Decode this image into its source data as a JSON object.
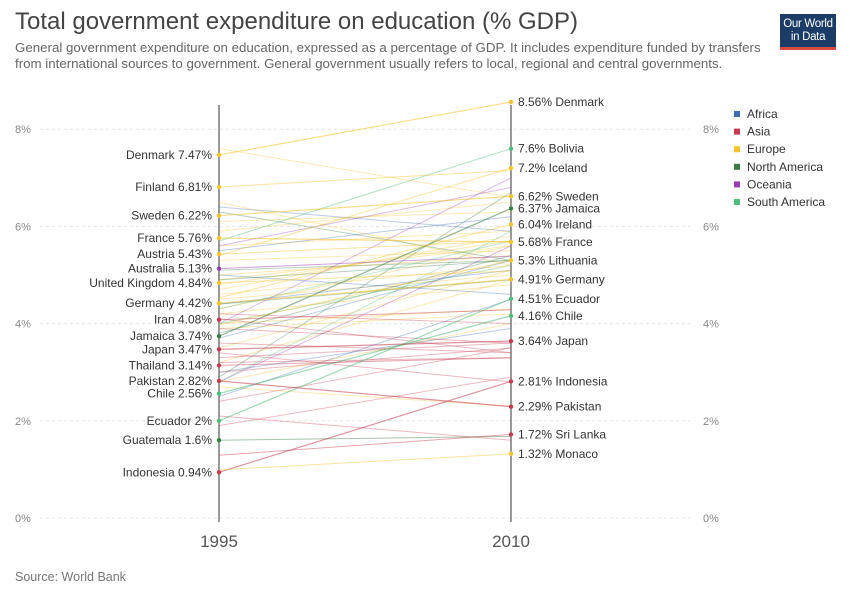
{
  "title": "Total government expenditure on education (% GDP)",
  "subtitle": "General government expenditure on education, expressed as a percentage of GDP. It includes expenditure funded by transfers from international sources to government. General government usually refers to local, regional and central governments.",
  "logo": {
    "line1": "Our World",
    "line2": "in Data"
  },
  "source": "Source: World Bank",
  "chart_data": {
    "type": "line",
    "x": [
      "1995",
      "2010"
    ],
    "ylim": [
      0,
      8.6
    ],
    "yticks": [
      0,
      2,
      4,
      6,
      8
    ],
    "ytick_labels": [
      "0%",
      "2%",
      "4%",
      "6%",
      "8%"
    ],
    "unit": "%",
    "grid": true,
    "legend": {
      "position": "right",
      "entries": [
        {
          "name": "Africa",
          "color": "#3c6db5"
        },
        {
          "name": "Asia",
          "color": "#c43a4e"
        },
        {
          "name": "Europe",
          "color": "#f5c32c"
        },
        {
          "name": "North America",
          "color": "#3a7d44"
        },
        {
          "name": "Oceania",
          "color": "#9a3ab5"
        },
        {
          "name": "South America",
          "color": "#4dbf7a"
        }
      ]
    },
    "series": [
      {
        "name": "Denmark",
        "region": "Europe",
        "values": [
          7.47,
          8.56
        ],
        "label_start": "Denmark 7.47%",
        "label_end": "8.56% Denmark"
      },
      {
        "name": "Bolivia",
        "region": "South America",
        "values": [
          null,
          7.6
        ],
        "label_start": "",
        "label_end": "7.6% Bolivia"
      },
      {
        "name": "Iceland",
        "region": "Europe",
        "values": [
          null,
          7.2
        ],
        "label_start": "",
        "label_end": "7.2% Iceland"
      },
      {
        "name": "Finland",
        "region": "Europe",
        "values": [
          6.81,
          null
        ],
        "label_start": "Finland 6.81%",
        "label_end": ""
      },
      {
        "name": "Sweden",
        "region": "Europe",
        "values": [
          6.22,
          6.62
        ],
        "label_start": "Sweden 6.22%",
        "label_end": "6.62% Sweden"
      },
      {
        "name": "Jamaica",
        "region": "North America",
        "values": [
          3.74,
          6.37
        ],
        "label_start": "Jamaica 3.74%",
        "label_end": "6.37% Jamaica"
      },
      {
        "name": "Ireland",
        "region": "Europe",
        "values": [
          null,
          6.04
        ],
        "label_start": "",
        "label_end": "6.04% Ireland"
      },
      {
        "name": "France",
        "region": "Europe",
        "values": [
          5.76,
          5.68
        ],
        "label_start": "France 5.76%",
        "label_end": "5.68% France"
      },
      {
        "name": "Austria",
        "region": "Europe",
        "values": [
          5.43,
          null
        ],
        "label_start": "Austria 5.43%",
        "label_end": ""
      },
      {
        "name": "Lithuania",
        "region": "Europe",
        "values": [
          null,
          5.3
        ],
        "label_start": "",
        "label_end": "5.3% Lithuania"
      },
      {
        "name": "Australia",
        "region": "Oceania",
        "values": [
          5.13,
          null
        ],
        "label_start": "Australia 5.13%",
        "label_end": ""
      },
      {
        "name": "Germany",
        "region": "Europe",
        "values": [
          4.42,
          4.91
        ],
        "label_start": "Germany 4.42%",
        "label_end": "4.91% Germany"
      },
      {
        "name": "United Kingdom",
        "region": "Europe",
        "values": [
          4.84,
          null
        ],
        "label_start": "United Kingdom 4.84%",
        "label_end": ""
      },
      {
        "name": "Ecuador",
        "region": "South America",
        "values": [
          2.0,
          4.51
        ],
        "label_start": "Ecuador 2%",
        "label_end": "4.51% Ecuador"
      },
      {
        "name": "Chile",
        "region": "South America",
        "values": [
          2.56,
          4.16
        ],
        "label_start": "Chile 2.56%",
        "label_end": "4.16% Chile"
      },
      {
        "name": "Iran",
        "region": "Asia",
        "values": [
          4.08,
          null
        ],
        "label_start": "Iran 4.08%",
        "label_end": ""
      },
      {
        "name": "Japan",
        "region": "Asia",
        "values": [
          3.47,
          3.64
        ],
        "label_start": "Japan 3.47%",
        "label_end": "3.64% Japan"
      },
      {
        "name": "Thailand",
        "region": "Asia",
        "values": [
          3.14,
          null
        ],
        "label_start": "Thailand 3.14%",
        "label_end": ""
      },
      {
        "name": "Pakistan",
        "region": "Asia",
        "values": [
          2.82,
          2.29
        ],
        "label_start": "Pakistan 2.82%",
        "label_end": "2.29% Pakistan"
      },
      {
        "name": "Indonesia",
        "region": "Asia",
        "values": [
          0.94,
          2.81
        ],
        "label_start": "Indonesia 0.94%",
        "label_end": "2.81% Indonesia"
      },
      {
        "name": "Guatemala",
        "region": "North America",
        "values": [
          1.6,
          null
        ],
        "label_start": "Guatemala 1.6%",
        "label_end": ""
      },
      {
        "name": "Sri Lanka",
        "region": "Asia",
        "values": [
          null,
          1.72
        ],
        "label_start": "",
        "label_end": "1.72% Sri Lanka"
      },
      {
        "name": "Monaco",
        "region": "Europe",
        "values": [
          null,
          1.32
        ],
        "label_start": "",
        "label_end": "1.32% Monaco"
      }
    ],
    "background_series": [
      {
        "region": "Europe",
        "values": [
          5.6,
          5.9
        ]
      },
      {
        "region": "Europe",
        "values": [
          5.0,
          5.4
        ]
      },
      {
        "region": "Europe",
        "values": [
          4.9,
          5.6
        ]
      },
      {
        "region": "Europe",
        "values": [
          4.6,
          5.2
        ]
      },
      {
        "region": "Europe",
        "values": [
          4.5,
          5.0
        ]
      },
      {
        "region": "Europe",
        "values": [
          4.3,
          5.6
        ]
      },
      {
        "region": "Europe",
        "values": [
          4.2,
          4.8
        ]
      },
      {
        "region": "Europe",
        "values": [
          5.3,
          5.5
        ]
      },
      {
        "region": "Europe",
        "values": [
          3.9,
          4.2
        ]
      },
      {
        "region": "Europe",
        "values": [
          4.7,
          5.8
        ]
      },
      {
        "region": "Europe",
        "values": [
          3.5,
          5.1
        ]
      },
      {
        "region": "Europe",
        "values": [
          6.1,
          6.3
        ]
      },
      {
        "region": "Europe",
        "values": [
          3.2,
          4.9
        ]
      },
      {
        "region": "Europe",
        "values": [
          2.8,
          4.0
        ]
      },
      {
        "region": "Europe",
        "values": [
          5.9,
          6.5
        ]
      },
      {
        "region": "Europe",
        "values": [
          4.0,
          4.3
        ]
      },
      {
        "region": "Europe",
        "values": [
          7.6,
          6.6
        ]
      },
      {
        "region": "Europe",
        "values": [
          2.7,
          2.3
        ]
      },
      {
        "region": "Europe",
        "values": [
          6.5,
          5.2
        ]
      },
      {
        "region": "Europe",
        "values": [
          4.8,
          5.7
        ]
      },
      {
        "region": "Africa",
        "values": [
          6.4,
          5.9
        ]
      },
      {
        "region": "Africa",
        "values": [
          5.0,
          4.6
        ]
      },
      {
        "region": "Africa",
        "values": [
          3.0,
          3.9
        ]
      },
      {
        "region": "Africa",
        "values": [
          4.4,
          5.1
        ]
      },
      {
        "region": "Africa",
        "values": [
          2.5,
          4.5
        ]
      },
      {
        "region": "Africa",
        "values": [
          5.5,
          6.2
        ]
      },
      {
        "region": "Africa",
        "values": [
          3.7,
          5.3
        ]
      },
      {
        "region": "Asia",
        "values": [
          3.9,
          3.6
        ]
      },
      {
        "region": "Asia",
        "values": [
          2.1,
          1.6
        ]
      },
      {
        "region": "Asia",
        "values": [
          3.4,
          2.8
        ]
      },
      {
        "region": "Asia",
        "values": [
          4.2,
          4.0
        ]
      },
      {
        "region": "Asia",
        "values": [
          2.4,
          3.5
        ]
      },
      {
        "region": "Asia",
        "values": [
          3.2,
          3.3
        ]
      },
      {
        "region": "Asia",
        "values": [
          3.0,
          3.5
        ]
      },
      {
        "region": "Asia",
        "values": [
          3.6,
          3.4
        ]
      },
      {
        "region": "Asia",
        "values": [
          1.9,
          2.9
        ]
      },
      {
        "region": "Asia",
        "values": [
          4.1,
          3.4
        ]
      },
      {
        "region": "Asia",
        "values": [
          3.3,
          3.6
        ]
      },
      {
        "region": "North America",
        "values": [
          6.3,
          5.3
        ]
      },
      {
        "region": "North America",
        "values": [
          5.1,
          5.3
        ]
      },
      {
        "region": "North America",
        "values": [
          3.8,
          5.4
        ]
      },
      {
        "region": "North America",
        "values": [
          2.9,
          6.7
        ]
      },
      {
        "region": "North America",
        "values": [
          4.9,
          5.3
        ]
      },
      {
        "region": "North America",
        "values": [
          4.4,
          4.9
        ]
      },
      {
        "region": "Oceania",
        "values": [
          5.6,
          6.8
        ]
      },
      {
        "region": "Oceania",
        "values": [
          4.0,
          7.0
        ]
      },
      {
        "region": "Oceania",
        "values": [
          2.8,
          5.6
        ]
      },
      {
        "region": "South America",
        "values": [
          4.0,
          5.2
        ]
      },
      {
        "region": "South America",
        "values": [
          2.8,
          5.9
        ]
      },
      {
        "region": "South America",
        "values": [
          4.3,
          5.7
        ]
      }
    ]
  }
}
